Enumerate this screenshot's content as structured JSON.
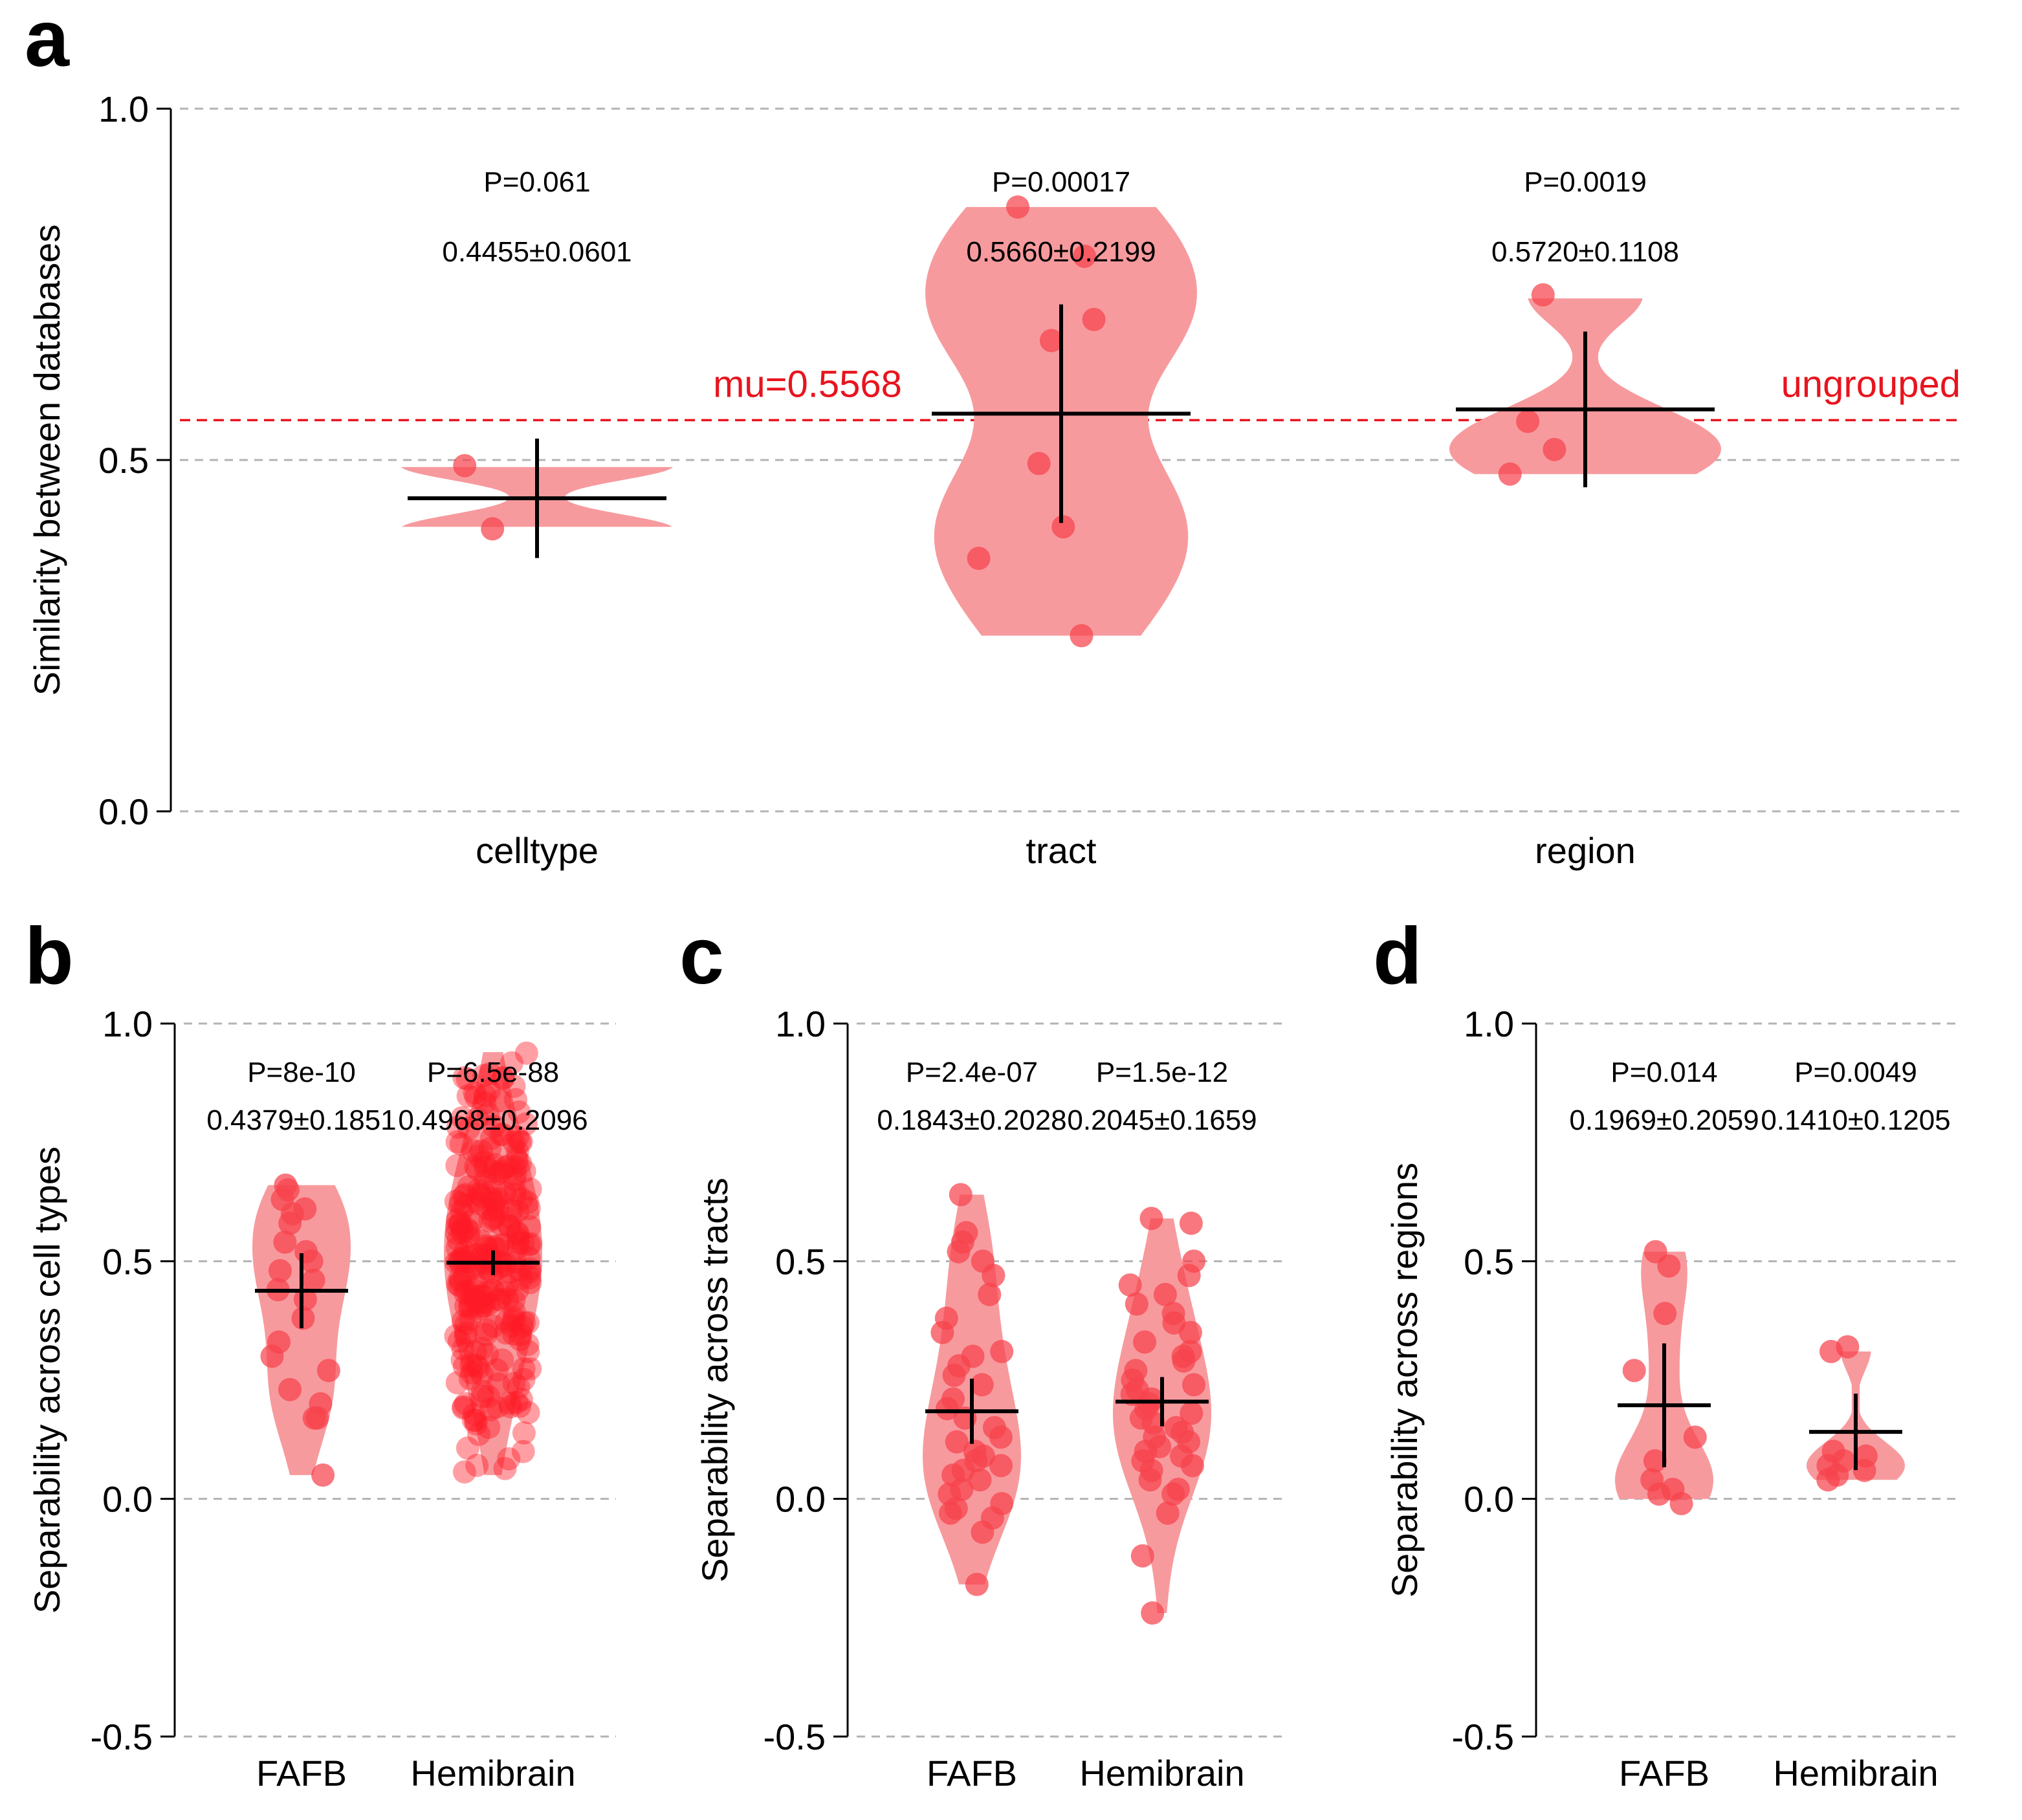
{
  "colors": {
    "violin_fill": "#f79a9e",
    "point_fill": "#f6434c",
    "hemibrain_point_fill": "#ff1a26",
    "reference_line": "#e8141e",
    "grid": "#b3b3b3",
    "stat_bar": "#000000"
  },
  "chart_data": [
    {
      "panel": "a",
      "type": "violin",
      "ylabel": "Similarity between databases",
      "ylim": [
        0,
        1
      ],
      "yticks": [
        "0.0",
        "0.5",
        "1.0"
      ],
      "ytick_values": [
        0,
        0.5,
        1
      ],
      "grid": "horizontal dashed",
      "categories": [
        "celltype",
        "tract",
        "region"
      ],
      "reference_line": {
        "value": 0.5568,
        "label_left": "mu=0.5568",
        "label_right": "ungrouped"
      },
      "groups": [
        {
          "category": "celltype",
          "p_text": "P=0.061",
          "stat_text": "0.4455±0.0601",
          "mean": 0.4455,
          "sd": 0.0601,
          "range": [
            0.405,
            0.49
          ],
          "points": [
            0.402,
            0.492
          ]
        },
        {
          "category": "tract",
          "p_text": "P=0.00017",
          "stat_text": "0.5660±0.2199",
          "mean": 0.566,
          "sd": 0.2199,
          "range": [
            0.25,
            0.86
          ],
          "points": [
            0.86,
            0.79,
            0.7,
            0.67,
            0.495,
            0.405,
            0.36,
            0.25
          ]
        },
        {
          "category": "region",
          "p_text": "P=0.0019",
          "stat_text": "0.5720±0.1108",
          "mean": 0.572,
          "sd": 0.1108,
          "range": [
            0.48,
            0.73
          ],
          "points": [
            0.735,
            0.555,
            0.515,
            0.48
          ]
        }
      ]
    },
    {
      "panel": "b",
      "type": "violin",
      "ylabel": "Separability across cell types",
      "ylim": [
        -0.5,
        1
      ],
      "yticks": [
        "-0.5",
        "0.0",
        "0.5",
        "1.0"
      ],
      "ytick_values": [
        -0.5,
        0,
        0.5,
        1
      ],
      "grid": "horizontal dashed",
      "categories": [
        "FAFB",
        "Hemibrain"
      ],
      "groups": [
        {
          "category": "FAFB",
          "p_text": "P=8e-10",
          "stat_text": "0.4379±0.1851",
          "mean": 0.4379,
          "sd": 0.1851,
          "range": [
            0.05,
            0.66
          ],
          "points": [
            0.65,
            0.66,
            0.63,
            0.61,
            0.6,
            0.58,
            0.54,
            0.52,
            0.5,
            0.48,
            0.46,
            0.44,
            0.42,
            0.38,
            0.33,
            0.3,
            0.27,
            0.23,
            0.2,
            0.17,
            0.17,
            0.05
          ]
        },
        {
          "category": "Hemibrain",
          "p_text": "P=6.5e-88",
          "stat_text": "0.4968±0.2096",
          "mean": 0.4968,
          "sd": 0.2096,
          "range": [
            0.05,
            0.94
          ],
          "n_points": 260,
          "seed": 7
        }
      ]
    },
    {
      "panel": "c",
      "type": "violin",
      "ylabel": "Separability across tracts",
      "ylim": [
        -0.5,
        1
      ],
      "yticks": [
        "-0.5",
        "0.0",
        "0.5",
        "1.0"
      ],
      "ytick_values": [
        -0.5,
        0,
        0.5,
        1
      ],
      "grid": "horizontal dashed",
      "categories": [
        "FAFB",
        "Hemibrain"
      ],
      "groups": [
        {
          "category": "FAFB",
          "p_text": "P=2.4e-07",
          "stat_text": "0.1843±0.2028",
          "mean": 0.1843,
          "sd": 0.2028,
          "range": [
            -0.18,
            0.64
          ],
          "points": [
            0.64,
            0.56,
            0.54,
            0.52,
            0.5,
            0.47,
            0.43,
            0.38,
            0.35,
            0.31,
            0.3,
            0.28,
            0.26,
            0.24,
            0.21,
            0.19,
            0.17,
            0.15,
            0.13,
            0.12,
            0.1,
            0.09,
            0.08,
            0.07,
            0.06,
            0.05,
            0.04,
            0.02,
            0.01,
            -0.01,
            -0.02,
            -0.03,
            -0.04,
            -0.07,
            -0.18
          ]
        },
        {
          "category": "Hemibrain",
          "p_text": "P=1.5e-12",
          "stat_text": "0.2045±0.1659",
          "mean": 0.2045,
          "sd": 0.1659,
          "range": [
            -0.24,
            0.59
          ],
          "points": [
            0.59,
            0.58,
            0.5,
            0.47,
            0.45,
            0.43,
            0.41,
            0.39,
            0.37,
            0.35,
            0.33,
            0.31,
            0.3,
            0.29,
            0.27,
            0.25,
            0.24,
            0.23,
            0.22,
            0.21,
            0.2,
            0.19,
            0.18,
            0.17,
            0.16,
            0.15,
            0.14,
            0.13,
            0.12,
            0.11,
            0.1,
            0.09,
            0.08,
            0.07,
            0.06,
            0.04,
            0.02,
            0.01,
            -0.03,
            -0.12,
            -0.24
          ]
        }
      ]
    },
    {
      "panel": "d",
      "type": "violin",
      "ylabel": "Separability across regions",
      "ylim": [
        -0.5,
        1
      ],
      "yticks": [
        "-0.5",
        "0.0",
        "0.5",
        "1.0"
      ],
      "ytick_values": [
        -0.5,
        0,
        0.5,
        1
      ],
      "grid": "horizontal dashed",
      "categories": [
        "FAFB",
        "Hemibrain"
      ],
      "groups": [
        {
          "category": "FAFB",
          "p_text": "P=0.014",
          "stat_text": "0.1969±0.2059",
          "mean": 0.1969,
          "sd": 0.2059,
          "range": [
            0.0,
            0.52
          ],
          "points": [
            0.52,
            0.49,
            0.39,
            0.27,
            0.13,
            0.08,
            0.04,
            0.02,
            0.01,
            -0.01
          ]
        },
        {
          "category": "Hemibrain",
          "p_text": "P=0.0049",
          "stat_text": "0.1410±0.1205",
          "mean": 0.141,
          "sd": 0.1205,
          "range": [
            0.04,
            0.31
          ],
          "points": [
            0.32,
            0.31,
            0.1,
            0.09,
            0.08,
            0.07,
            0.06,
            0.05,
            0.04
          ]
        }
      ]
    }
  ],
  "panels": {
    "a": "a",
    "b": "b",
    "c": "c",
    "d": "d"
  }
}
